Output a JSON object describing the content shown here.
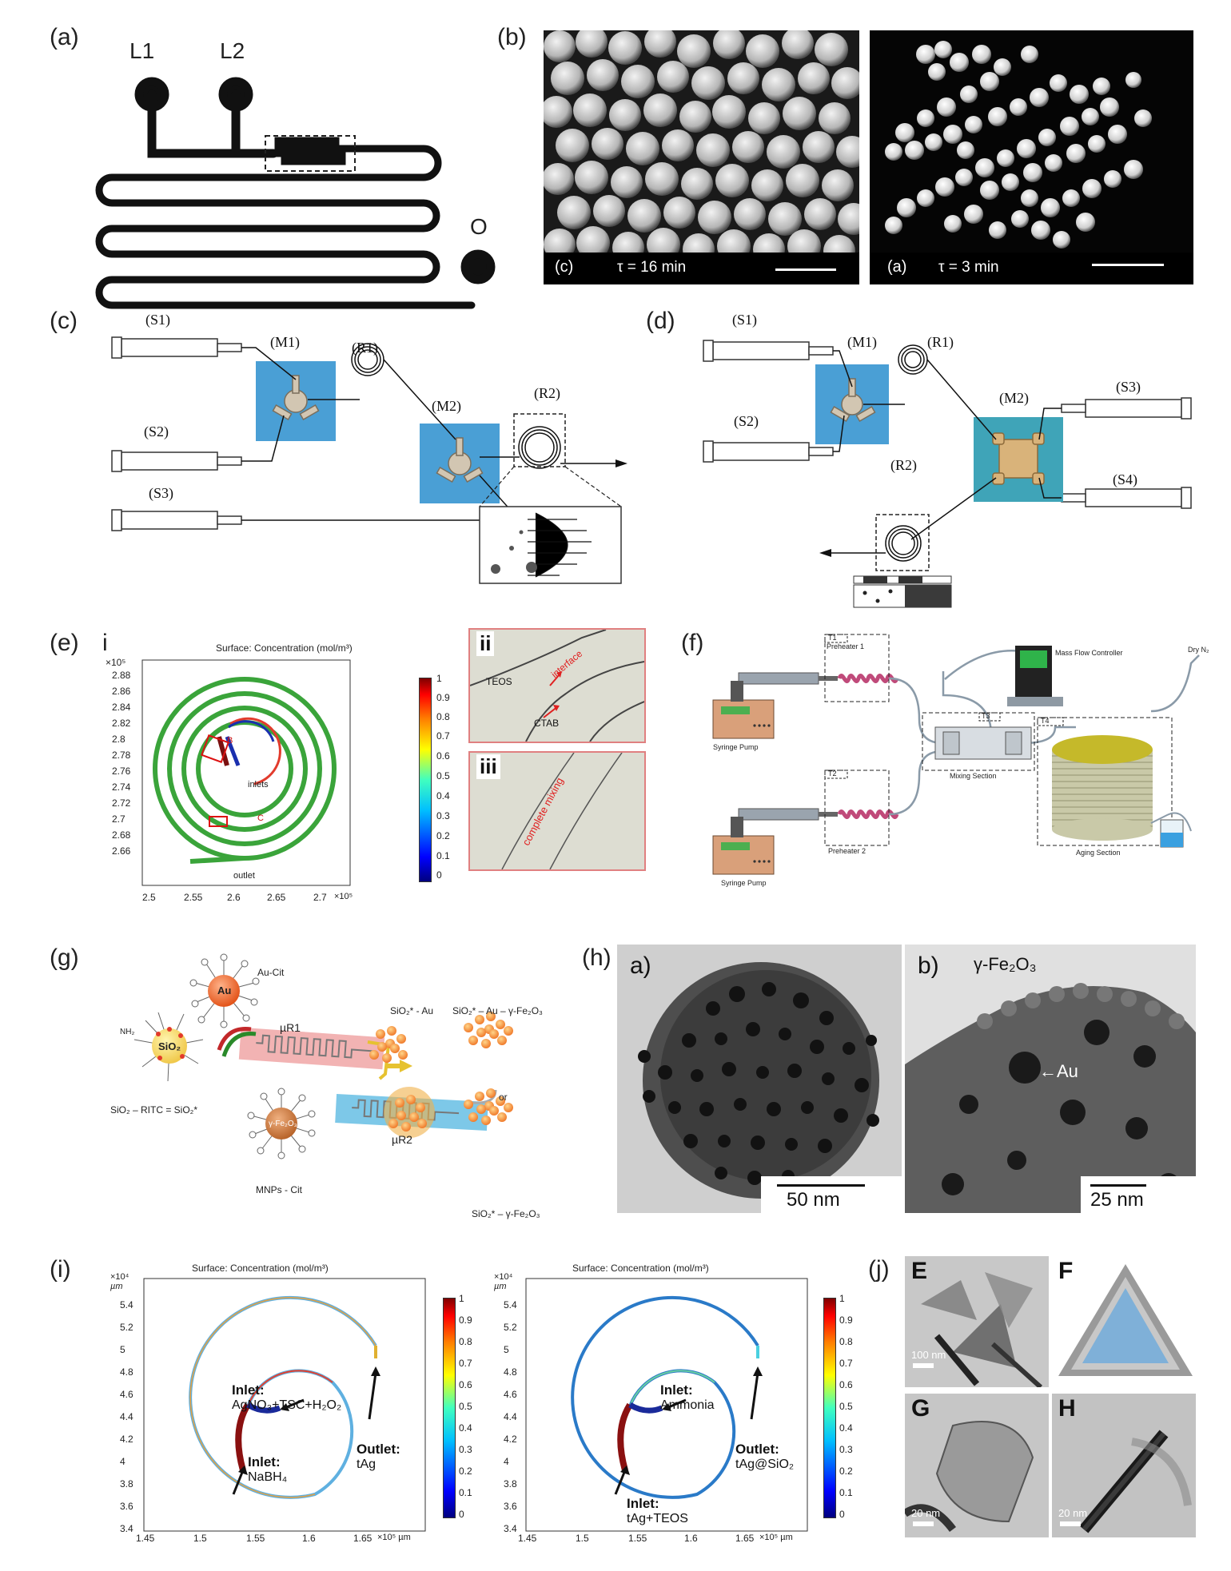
{
  "panels": {
    "a": {
      "label": "(a)",
      "l1": "L1",
      "l2": "L2",
      "o": "O"
    },
    "b": {
      "label": "(b)",
      "left": {
        "tag": "(c)",
        "text": "τ = 16 min"
      },
      "right": {
        "tag": "(a)",
        "text": "τ = 3 min"
      }
    },
    "c": {
      "label": "(c)",
      "s1": "(S1)",
      "s2": "(S2)",
      "s3": "(S3)",
      "m1": "(M1)",
      "m2": "(M2)",
      "r1": "(R1)",
      "r2": "(R2)"
    },
    "d": {
      "label": "(d)",
      "s1": "(S1)",
      "s2": "(S2)",
      "s3": "(S3)",
      "s4": "(S4)",
      "m1": "(M1)",
      "m2": "(M2)",
      "r1": "(R1)",
      "r2": "(R2)"
    },
    "e": {
      "label": "(e)",
      "sub_i": "i",
      "sub_ii": "ii",
      "sub_iii": "iii",
      "title": "Surface: Concentration (mol/m³)",
      "y_exp": "×10⁵",
      "x_exp": "×10⁵",
      "yticks": [
        "2.88",
        "2.86",
        "2.84",
        "2.82",
        "2.8",
        "2.78",
        "2.76",
        "2.74",
        "2.72",
        "2.7",
        "2.68",
        "2.66"
      ],
      "xticks": [
        "2.5",
        "2.55",
        "2.6",
        "2.65",
        "2.7"
      ],
      "cbar": [
        "1",
        "0.9",
        "0.8",
        "0.7",
        "0.6",
        "0.5",
        "0.4",
        "0.3",
        "0.2",
        "0.1",
        "0"
      ],
      "b_marker": "B",
      "c_marker": "C",
      "inlets": "inlets",
      "outlet": "outlet",
      "teos": "TEOS",
      "interface": "interface",
      "ctab": "CTAB",
      "complete_mixing": "complete mixing"
    },
    "f": {
      "label": "(f)",
      "t1": "T1",
      "t2": "T2",
      "t3": "T3",
      "t4": "T4",
      "preheater1": "Preheater 1",
      "preheater2": "Preheater 2",
      "syringe_pump": "Syringe Pump",
      "mixing": "Mixing Section",
      "aging": "Aging Section",
      "mfc": "Mass Flow Controller",
      "dry_n2": "Dry N₂"
    },
    "g": {
      "label": "(g)",
      "au_cit": "Au-Cit",
      "au": "Au",
      "sio2": "SiO₂",
      "ur1": "µR1",
      "ur2": "µR2",
      "sio2_au": "SiO₂* - Au",
      "sio2_au_fe": "SiO₂* – Au – γ-Fe₂O₃",
      "or": "or",
      "sio2_fe": "SiO₂* – γ-Fe₂O₃",
      "sio2_ritc": "SiO₂ – RITC = SiO₂*",
      "fe": "γ-Fe₂O₃",
      "mnps": "MNPs - Cit",
      "nh2": "NH₂"
    },
    "h": {
      "label": "(h)",
      "a": "a)",
      "b": "b)",
      "scale_a": "50 nm",
      "scale_b": "25 nm",
      "fe": "γ-Fe₂O₃",
      "au": "←Au"
    },
    "i": {
      "label": "(i)",
      "left": {
        "title": "Surface: Concentration (mol/m³)",
        "y_exp": "×10⁴",
        "y_unit": "µm",
        "yticks": [
          "5.4",
          "5.2",
          "5",
          "4.8",
          "4.6",
          "4.4",
          "4.2",
          "4",
          "3.8",
          "3.6",
          "3.4"
        ],
        "xticks": [
          "1.45",
          "1.5",
          "1.55",
          "1.6",
          "1.65"
        ],
        "x_exp": "×10⁵ µm",
        "inlet1": "Inlet:",
        "inlet1_val": "AgNO₃+TSC+H₂O₂",
        "inlet2": "Inlet:",
        "inlet2_val": "NaBH₄",
        "outlet": "Outlet:",
        "outlet_val": "tAg"
      },
      "right": {
        "title": "Surface: Concentration (mol/m³)",
        "y_exp": "×10⁴",
        "y_unit": "µm",
        "yticks": [
          "5.4",
          "5.2",
          "5",
          "4.8",
          "4.6",
          "4.4",
          "4.2",
          "4",
          "3.8",
          "3.6",
          "3.4"
        ],
        "xticks": [
          "1.45",
          "1.5",
          "1.55",
          "1.6",
          "1.65"
        ],
        "x_exp": "×10⁵ µm",
        "inlet1": "Inlet:",
        "inlet1_val": "Ammonia",
        "inlet2": "Inlet:",
        "inlet2_val": "tAg+TEOS",
        "outlet": "Outlet:",
        "outlet_val": "tAg@SiO₂"
      },
      "cbar": [
        "1",
        "0.9",
        "0.8",
        "0.7",
        "0.6",
        "0.5",
        "0.4",
        "0.3",
        "0.2",
        "0.1",
        "0"
      ]
    },
    "j": {
      "label": "(j)",
      "e": "E",
      "f": "F",
      "g": "G",
      "h": "H",
      "scale_e": "100 nm",
      "scale_g": "20 nm",
      "scale_h": "20 nm"
    }
  }
}
